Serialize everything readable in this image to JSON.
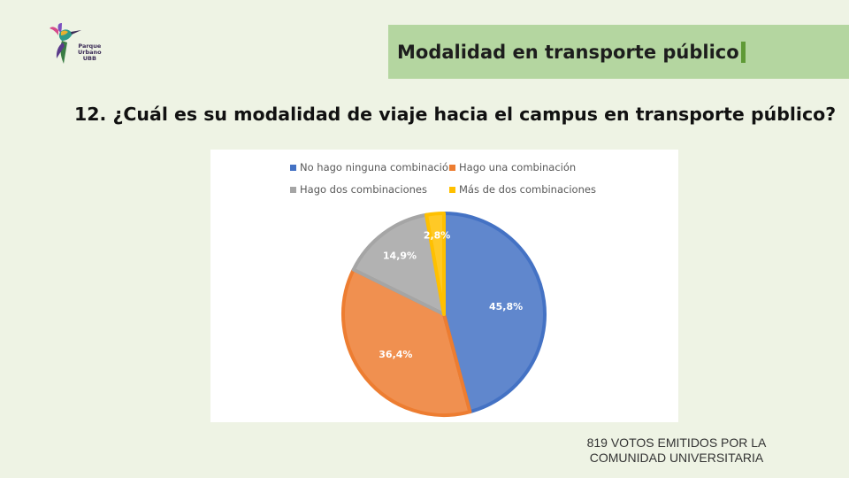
{
  "logo": {
    "lines": [
      "Parque",
      "Urbano",
      "UBB"
    ]
  },
  "header": {
    "title": "Modalidad en transporte público"
  },
  "question": "12.  ¿Cuál es su modalidad de viaje hacia el campus en transporte público?",
  "colors": {
    "title_box": "#b4d6a0",
    "series": [
      "#4472c4",
      "#ed7d31",
      "#a5a5a5",
      "#ffc000"
    ]
  },
  "chart_data": {
    "type": "pie",
    "categories": [
      "No hago ninguna combinación",
      "Hago una combinación",
      "Hago dos combinaciones",
      "Más de dos combinaciones"
    ],
    "values": [
      45.8,
      36.4,
      14.9,
      2.8
    ],
    "data_labels": [
      "45,8%",
      "36,4%",
      "14,9%",
      "2,8%"
    ],
    "legend": "top"
  },
  "footer": {
    "lines": [
      "819  VOTOS EMITIDOS POR LA",
      "COMUNIDAD UNIVERSITARIA"
    ]
  }
}
